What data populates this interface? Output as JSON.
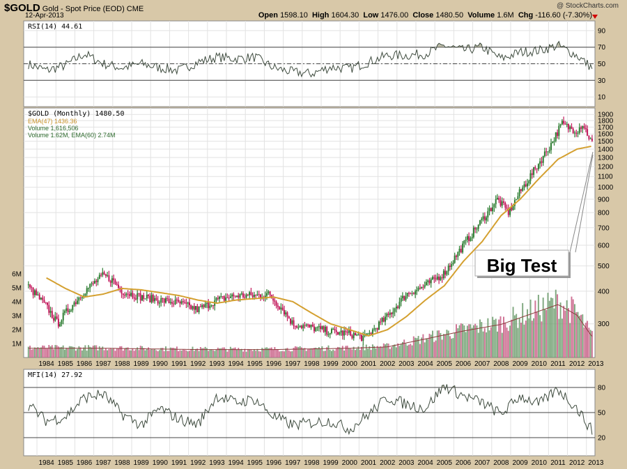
{
  "header": {
    "symbol": "$GOLD",
    "name": "Gold - Spot Price (EOD)",
    "exchange": "CME",
    "date": "12-Apr-2013",
    "watermark": "@ StockCharts.com",
    "quote": {
      "open_label": "Open",
      "open": "1598.10",
      "high_label": "High",
      "high": "1604.30",
      "low_label": "Low",
      "low": "1476.00",
      "close_label": "Close",
      "close": "1480.50",
      "volume_label": "Volume",
      "volume": "1.6M",
      "chg_label": "Chg",
      "chg": "-116.60 (-7.30%)"
    }
  },
  "colors": {
    "up": "#2e7d32",
    "down": "#c2185b",
    "ema": "#d4a030",
    "frame": "#d8c8a8",
    "panel": "#ffffff",
    "grid": "#e2e2e2",
    "line": "#3d4a3d"
  },
  "rsi_panel": {
    "legend": "RSI(14) 44.61",
    "ticks": [
      "90",
      "70",
      "50",
      "30",
      "10"
    ]
  },
  "price_panel": {
    "legend_title": "$GOLD (Monthly) 1480.50",
    "legend_ema": "EMA(47) 1436.36",
    "legend_volume": "Volume 1,616,506",
    "legend_volume_ema": "Volume 1.62M, EMA(60) 2.74M",
    "price_ticks": [
      "1900",
      "1800",
      "1700",
      "1600",
      "1500",
      "1400",
      "1300",
      "1200",
      "1100",
      "1000",
      "900",
      "800",
      "700",
      "600",
      "500",
      "400",
      "300"
    ],
    "volume_ticks": [
      "6M",
      "5M",
      "4M",
      "3M",
      "2M",
      "1M"
    ],
    "annotation": "Big Test"
  },
  "mfi_panel": {
    "legend": "MFI(14) 27.92",
    "ticks": [
      "80",
      "50",
      "20"
    ]
  },
  "x_axis": {
    "years": [
      "1984",
      "1985",
      "1986",
      "1987",
      "1988",
      "1989",
      "1990",
      "1991",
      "1992",
      "1993",
      "1994",
      "1995",
      "1996",
      "1997",
      "1998",
      "1999",
      "2000",
      "2001",
      "2002",
      "2003",
      "2004",
      "2005",
      "2006",
      "2007",
      "2008",
      "2009",
      "2010",
      "2011",
      "2012",
      "2013"
    ]
  },
  "chart_data": [
    {
      "type": "line",
      "name": "RSI(14)",
      "x": [
        1983.5,
        1984.5,
        1985.5,
        1986.5,
        1987.5,
        1988.5,
        1989.5,
        1990.5,
        1991.5,
        1992.5,
        1993.5,
        1994.5,
        1995.5,
        1996.5,
        1997.5,
        1998.5,
        1999.5,
        2000.5,
        2001.5,
        2002.5,
        2003.5,
        2004.5,
        2005.5,
        2006.5,
        2007.5,
        2008.5,
        2009.5,
        2010.5,
        2011.5,
        2012.5,
        2013.3
      ],
      "y": [
        50,
        42,
        48,
        62,
        50,
        45,
        50,
        45,
        42,
        52,
        58,
        56,
        58,
        45,
        40,
        38,
        46,
        44,
        52,
        60,
        60,
        62,
        72,
        66,
        70,
        56,
        64,
        66,
        72,
        60,
        45
      ],
      "ylim": [
        0,
        100
      ],
      "reference_lines": [
        70,
        50,
        30
      ]
    },
    {
      "type": "candlestick",
      "name": "$GOLD (Monthly)",
      "x": [
        1983.5,
        1984.5,
        1985.1,
        1985.5,
        1986.5,
        1987.5,
        1988.0,
        1988.5,
        1989.5,
        1990.5,
        1991.5,
        1992.5,
        1993.5,
        1994.5,
        1995.5,
        1996.2,
        1997.0,
        1997.5,
        1998.5,
        1999.5,
        2000.5,
        2001.3,
        2002.5,
        2003.5,
        2004.5,
        2005.5,
        2006.5,
        2007.5,
        2008.3,
        2008.9,
        2009.5,
        2010.5,
        2011.1,
        2011.7,
        2012.0,
        2012.5,
        2012.8,
        2013.28
      ],
      "close": [
        420,
        350,
        300,
        330,
        400,
        460,
        440,
        400,
        380,
        370,
        360,
        340,
        370,
        385,
        385,
        390,
        340,
        300,
        290,
        280,
        275,
        265,
        320,
        390,
        420,
        470,
        600,
        750,
        900,
        800,
        960,
        1240,
        1450,
        1750,
        1700,
        1650,
        1750,
        1480
      ],
      "ylim": [
        230,
        1950
      ],
      "scale": "log"
    },
    {
      "type": "line",
      "name": "EMA(47)",
      "x": [
        1984.5,
        1985.5,
        1986.5,
        1987.5,
        1988.5,
        1989.5,
        1990.5,
        1991.5,
        1992.5,
        1993.5,
        1994.5,
        1995.5,
        1996.5,
        1997.5,
        1998.5,
        1999.5,
        2000.5,
        2001.5,
        2002.5,
        2003.5,
        2004.5,
        2005.5,
        2006.5,
        2007.5,
        2008.5,
        2009.5,
        2010.5,
        2011.5,
        2012.5,
        2013.28
      ],
      "y": [
        450,
        410,
        380,
        390,
        410,
        405,
        395,
        385,
        370,
        360,
        370,
        375,
        380,
        365,
        330,
        300,
        285,
        270,
        285,
        320,
        370,
        420,
        520,
        620,
        780,
        900,
        1080,
        1280,
        1400,
        1436
      ]
    },
    {
      "type": "bar",
      "name": "Volume",
      "x": [
        1983.5,
        1987.5,
        1992.5,
        1996.5,
        2000.5,
        2002.5,
        2006.5,
        2008.5,
        2010.5,
        2011.5,
        2012.5,
        2013.28
      ],
      "values": [
        0.7,
        0.7,
        0.6,
        0.6,
        0.7,
        0.8,
        2.0,
        2.5,
        3.5,
        4.0,
        3.2,
        1.6
      ],
      "ylim": [
        0,
        7
      ]
    },
    {
      "type": "line",
      "name": "MFI(14)",
      "x": [
        1983.5,
        1984.5,
        1985.5,
        1986.5,
        1987.5,
        1988.5,
        1989.5,
        1990.5,
        1991.5,
        1992.5,
        1993.5,
        1994.5,
        1995.5,
        1996.5,
        1997.5,
        1998.5,
        1999.5,
        2000.5,
        2001.5,
        2002.5,
        2003.5,
        2004.5,
        2005.5,
        2006.5,
        2007.5,
        2008.5,
        2009.5,
        2010.5,
        2011.5,
        2012.5,
        2013.3
      ],
      "y": [
        60,
        40,
        45,
        68,
        72,
        48,
        35,
        55,
        42,
        36,
        70,
        62,
        66,
        45,
        35,
        38,
        40,
        30,
        48,
        68,
        60,
        55,
        82,
        70,
        62,
        48,
        70,
        60,
        78,
        55,
        28
      ],
      "ylim": [
        0,
        100
      ],
      "reference_lines": [
        80,
        50,
        20
      ]
    }
  ]
}
